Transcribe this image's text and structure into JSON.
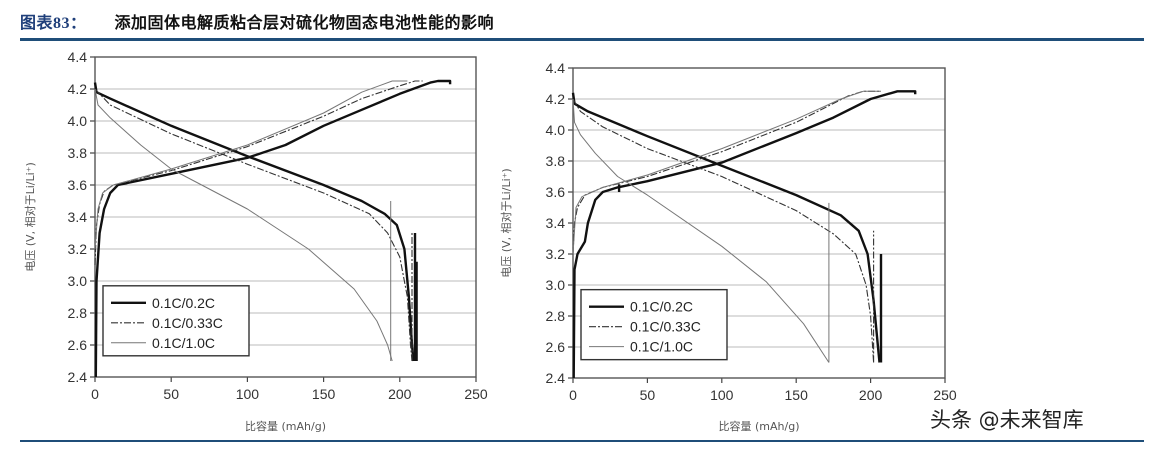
{
  "header": {
    "figure_label": "图表83：",
    "title": "添加固体电解质粘合层对硫化物固态电池性能的影响"
  },
  "watermark": "头条 @未来智库",
  "colors": {
    "rule": "#1f4e79",
    "grid": "#bbbbbb"
  },
  "chart_data": [
    {
      "type": "line",
      "title": "",
      "xlabel": "比容量 (mAh/g)",
      "ylabel": "电压 (V, 相对于Li/Li⁺)",
      "xlim": [
        0,
        250
      ],
      "ylim": [
        2.4,
        4.4
      ],
      "xticks": [
        0,
        50,
        100,
        150,
        200,
        250
      ],
      "yticks": [
        2.4,
        2.6,
        2.8,
        3.0,
        3.2,
        3.4,
        3.6,
        3.8,
        4.0,
        4.2,
        4.4
      ],
      "grid": "horizontal",
      "legend_position": "bottom-left",
      "legend": [
        "0.1C/0.2C",
        "0.1C/0.33C",
        "0.1C/1.0C"
      ],
      "series": [
        {
          "name": "0.1C/0.2C",
          "style": "thick",
          "segments": [
            [
              [
                0.5,
                2.4
              ],
              [
                1,
                3.0
              ],
              [
                3,
                3.3
              ],
              [
                6,
                3.45
              ],
              [
                10,
                3.55
              ],
              [
                15,
                3.6
              ],
              [
                20,
                3.61
              ],
              [
                50,
                3.67
              ],
              [
                100,
                3.77
              ],
              [
                125,
                3.85
              ],
              [
                150,
                3.97
              ],
              [
                175,
                4.07
              ],
              [
                200,
                4.17
              ],
              [
                220,
                4.24
              ],
              [
                225,
                4.25
              ],
              [
                233,
                4.25
              ],
              [
                233,
                4.23
              ]
            ],
            [
              [
                0,
                4.24
              ],
              [
                1,
                4.18
              ],
              [
                10,
                4.14
              ],
              [
                50,
                3.97
              ],
              [
                100,
                3.78
              ],
              [
                150,
                3.6
              ],
              [
                175,
                3.5
              ],
              [
                190,
                3.42
              ],
              [
                198,
                3.35
              ],
              [
                203,
                3.2
              ],
              [
                206,
                2.9
              ],
              [
                208,
                2.6
              ],
              [
                209,
                2.5
              ]
            ],
            [
              [
                210,
                2.5
              ],
              [
                210,
                3.3
              ]
            ],
            [
              [
                211,
                2.5
              ],
              [
                211,
                3.12
              ]
            ]
          ]
        },
        {
          "name": "0.1C/0.33C",
          "style": "dashdot",
          "segments": [
            [
              [
                0,
                3.1
              ],
              [
                1,
                3.35
              ],
              [
                3,
                3.48
              ],
              [
                6,
                3.56
              ],
              [
                12,
                3.6
              ],
              [
                50,
                3.69
              ],
              [
                100,
                3.84
              ],
              [
                150,
                4.03
              ],
              [
                175,
                4.14
              ],
              [
                200,
                4.22
              ],
              [
                210,
                4.25
              ],
              [
                215,
                4.25
              ]
            ],
            [
              [
                0,
                4.2
              ],
              [
                10,
                4.1
              ],
              [
                50,
                3.92
              ],
              [
                100,
                3.73
              ],
              [
                150,
                3.55
              ],
              [
                180,
                3.42
              ],
              [
                192,
                3.3
              ],
              [
                200,
                3.15
              ],
              [
                205,
                2.9
              ],
              [
                207,
                2.6
              ],
              [
                208,
                2.5
              ]
            ],
            [
              [
                208,
                2.5
              ],
              [
                208,
                3.3
              ]
            ]
          ]
        },
        {
          "name": "0.1C/1.0C",
          "style": "thin",
          "segments": [
            [
              [
                0,
                3.2
              ],
              [
                2,
                3.45
              ],
              [
                5,
                3.55
              ],
              [
                12,
                3.6
              ],
              [
                50,
                3.7
              ],
              [
                100,
                3.85
              ],
              [
                150,
                4.05
              ],
              [
                175,
                4.18
              ],
              [
                195,
                4.25
              ],
              [
                205,
                4.25
              ]
            ],
            [
              [
                0,
                4.2
              ],
              [
                2,
                4.1
              ],
              [
                10,
                4.02
              ],
              [
                30,
                3.85
              ],
              [
                50,
                3.7
              ],
              [
                100,
                3.45
              ],
              [
                140,
                3.2
              ],
              [
                170,
                2.95
              ],
              [
                185,
                2.75
              ],
              [
                192,
                2.6
              ],
              [
                195,
                2.5
              ]
            ],
            [
              [
                194,
                2.5
              ],
              [
                194,
                3.5
              ]
            ]
          ]
        }
      ]
    },
    {
      "type": "line",
      "title": "",
      "xlabel": "比容量 (mAh/g)",
      "ylabel": "电压 (V, 相对于Li/Li⁺)",
      "xlim": [
        0,
        250
      ],
      "ylim": [
        2.4,
        4.4
      ],
      "xticks": [
        0,
        50,
        100,
        150,
        200,
        250
      ],
      "yticks": [
        2.4,
        2.6,
        2.8,
        3.0,
        3.2,
        3.4,
        3.6,
        3.8,
        4.0,
        4.2,
        4.4
      ],
      "grid": "horizontal",
      "legend_position": "bottom-left",
      "legend": [
        "0.1C/0.2C",
        "0.1C/0.33C",
        "0.1C/1.0C"
      ],
      "series": [
        {
          "name": "0.1C/0.2C",
          "style": "thick",
          "segments": [
            [
              [
                0.5,
                2.4
              ],
              [
                1,
                3.1
              ],
              [
                3,
                3.2
              ],
              [
                8,
                3.28
              ],
              [
                10,
                3.4
              ],
              [
                15,
                3.55
              ],
              [
                20,
                3.6
              ],
              [
                30,
                3.63
              ],
              [
                50,
                3.67
              ],
              [
                100,
                3.79
              ],
              [
                150,
                3.98
              ],
              [
                175,
                4.08
              ],
              [
                200,
                4.2
              ],
              [
                218,
                4.25
              ],
              [
                230,
                4.25
              ],
              [
                230,
                4.23
              ]
            ],
            [
              [
                0,
                4.24
              ],
              [
                1,
                4.17
              ],
              [
                10,
                4.12
              ],
              [
                50,
                3.96
              ],
              [
                100,
                3.77
              ],
              [
                150,
                3.58
              ],
              [
                180,
                3.45
              ],
              [
                192,
                3.35
              ],
              [
                198,
                3.2
              ],
              [
                202,
                2.9
              ],
              [
                205,
                2.6
              ],
              [
                206,
                2.5
              ]
            ],
            [
              [
                207,
                2.5
              ],
              [
                207,
                3.2
              ]
            ],
            [
              [
                31,
                3.6
              ],
              [
                31,
                3.65
              ]
            ]
          ]
        },
        {
          "name": "0.1C/0.33C",
          "style": "dashdot",
          "segments": [
            [
              [
                0,
                3.2
              ],
              [
                1,
                3.4
              ],
              [
                3,
                3.5
              ],
              [
                8,
                3.58
              ],
              [
                20,
                3.63
              ],
              [
                50,
                3.7
              ],
              [
                100,
                3.86
              ],
              [
                150,
                4.05
              ],
              [
                185,
                4.22
              ],
              [
                195,
                4.25
              ],
              [
                207,
                4.25
              ]
            ],
            [
              [
                0,
                4.2
              ],
              [
                5,
                4.12
              ],
              [
                20,
                4.02
              ],
              [
                50,
                3.88
              ],
              [
                100,
                3.7
              ],
              [
                150,
                3.48
              ],
              [
                175,
                3.33
              ],
              [
                190,
                3.2
              ],
              [
                197,
                3.0
              ],
              [
                200,
                2.8
              ],
              [
                202,
                2.5
              ]
            ],
            [
              [
                202,
                2.5
              ],
              [
                202,
                3.35
              ]
            ]
          ]
        },
        {
          "name": "0.1C/1.0C",
          "style": "thin",
          "segments": [
            [
              [
                0,
                3.2
              ],
              [
                2,
                3.5
              ],
              [
                6,
                3.57
              ],
              [
                20,
                3.63
              ],
              [
                50,
                3.71
              ],
              [
                100,
                3.88
              ],
              [
                150,
                4.07
              ],
              [
                180,
                4.2
              ],
              [
                195,
                4.25
              ],
              [
                207,
                4.25
              ]
            ],
            [
              [
                0,
                4.2
              ],
              [
                1,
                4.05
              ],
              [
                5,
                3.97
              ],
              [
                15,
                3.85
              ],
              [
                30,
                3.7
              ],
              [
                50,
                3.58
              ],
              [
                100,
                3.25
              ],
              [
                130,
                3.02
              ],
              [
                155,
                2.75
              ],
              [
                172,
                2.5
              ]
            ],
            [
              [
                172,
                2.5
              ],
              [
                172,
                3.53
              ]
            ]
          ]
        }
      ]
    }
  ]
}
